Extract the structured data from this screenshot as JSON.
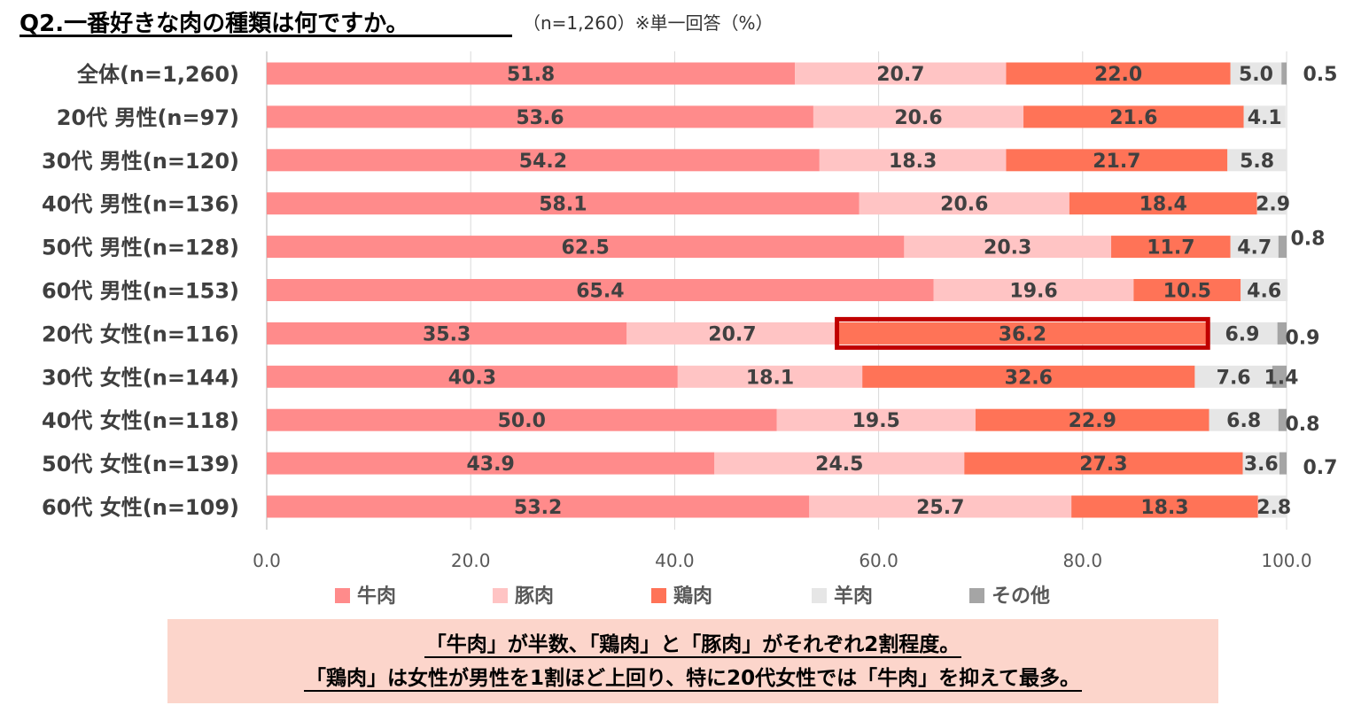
{
  "header": {
    "title": "Q2.一番好きな肉の種類は何ですか。",
    "subtitle": "（n=1,260）※単一回答（%）"
  },
  "chart_data": {
    "type": "bar",
    "orientation": "horizontal",
    "stacked": true,
    "categories": [
      "全体(n=1,260)",
      "20代 男性(n=97)",
      "30代 男性(n=120)",
      "40代 男性(n=136)",
      "50代 男性(n=128)",
      "60代 男性(n=153)",
      "20代 女性(n=116)",
      "30代 女性(n=144)",
      "40代 女性(n=118)",
      "50代 女性(n=139)",
      "60代 女性(n=109)"
    ],
    "series": [
      {
        "name": "牛肉",
        "color": "#ff8b8b",
        "values": [
          51.8,
          53.6,
          54.2,
          58.1,
          62.5,
          65.4,
          35.3,
          40.3,
          50.0,
          43.9,
          53.2
        ]
      },
      {
        "name": "豚肉",
        "color": "#ffc4c4",
        "values": [
          20.7,
          20.6,
          18.3,
          20.6,
          20.3,
          19.6,
          20.7,
          18.1,
          19.5,
          24.5,
          25.7
        ]
      },
      {
        "name": "鶏肉",
        "color": "#ff7357",
        "values": [
          22.0,
          21.6,
          21.7,
          18.4,
          11.7,
          10.5,
          36.2,
          32.6,
          22.9,
          27.3,
          18.3
        ]
      },
      {
        "name": "羊肉",
        "color": "#e6e6e6",
        "values": [
          5.0,
          4.1,
          5.8,
          2.9,
          4.7,
          4.6,
          6.9,
          7.6,
          6.8,
          3.6,
          2.8
        ]
      },
      {
        "name": "その他",
        "color": "#a5a5a5",
        "values": [
          0.5,
          0.0,
          0.0,
          0.0,
          0.8,
          0.0,
          0.9,
          1.4,
          0.8,
          0.7,
          0.0
        ]
      }
    ],
    "value_labels": [
      [
        "51.8",
        "20.7",
        "22.0",
        "5.0",
        "0.5"
      ],
      [
        "53.6",
        "20.6",
        "21.6",
        "4.1",
        ""
      ],
      [
        "54.2",
        "18.3",
        "21.7",
        "5.8",
        ""
      ],
      [
        "58.1",
        "20.6",
        "18.4",
        "2.9",
        ""
      ],
      [
        "62.5",
        "20.3",
        "11.7",
        "4.7",
        "0.8"
      ],
      [
        "65.4",
        "19.6",
        "10.5",
        "4.6",
        ""
      ],
      [
        "35.3",
        "20.7",
        "36.2",
        "6.9",
        "0.9"
      ],
      [
        "40.3",
        "18.1",
        "32.6",
        "7.6",
        "1.4"
      ],
      [
        "50.0",
        "19.5",
        "22.9",
        "6.8",
        "0.8"
      ],
      [
        "43.9",
        "24.5",
        "27.3",
        "3.6",
        "0.7"
      ],
      [
        "53.2",
        "25.7",
        "18.3",
        "2.8",
        ""
      ]
    ],
    "x_ticks": [
      "0.0",
      "20.0",
      "40.0",
      "60.0",
      "80.0",
      "100.0"
    ],
    "xlim": [
      0,
      100
    ],
    "grid": true,
    "legend_position": "bottom",
    "highlight": {
      "category": "20代 女性(n=116)",
      "series": "鶏肉",
      "color": "#c00000"
    }
  },
  "summary": {
    "line1": "「牛肉」が半数、「鶏肉」と「豚肉」がそれぞれ2割程度。",
    "line2": "「鶏肉」は女性が男性を1割ほど上回り、特に20代女性では「牛肉」を抑えて最多。"
  }
}
